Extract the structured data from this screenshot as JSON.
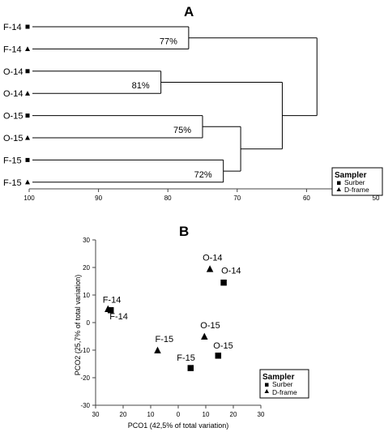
{
  "chart_data": [
    {
      "type": "dendrogram",
      "panel_label": "A",
      "leaves": [
        {
          "label": "F-14",
          "sampler": "Surber"
        },
        {
          "label": "F-14",
          "sampler": "D-frame"
        },
        {
          "label": "O-14",
          "sampler": "Surber"
        },
        {
          "label": "O-14",
          "sampler": "D-frame"
        },
        {
          "label": "O-15",
          "sampler": "Surber"
        },
        {
          "label": "O-15",
          "sampler": "D-frame"
        },
        {
          "label": "F-15",
          "sampler": "Surber"
        },
        {
          "label": "F-15",
          "sampler": "D-frame"
        }
      ],
      "clusters": [
        {
          "members": [
            0,
            1
          ],
          "similarity": 77,
          "label": "77%"
        },
        {
          "members": [
            2,
            3
          ],
          "similarity": 81,
          "label": "81%"
        },
        {
          "members": [
            4,
            5
          ],
          "similarity": 75,
          "label": "75%"
        },
        {
          "members": [
            6,
            7
          ],
          "similarity": 72,
          "label": "72%"
        },
        {
          "members": [
            4,
            5,
            6,
            7
          ],
          "similarity": 69.5,
          "label": ""
        },
        {
          "members": [
            2,
            3,
            4,
            5,
            6,
            7
          ],
          "similarity": 63.5,
          "label": ""
        },
        {
          "members": [
            0,
            1,
            2,
            3,
            4,
            5,
            6,
            7
          ],
          "similarity": 58.5,
          "label": ""
        }
      ],
      "x_ticks": [
        "100",
        "90",
        "80",
        "70",
        "60",
        "50"
      ],
      "xlim": [
        100,
        50
      ],
      "legend": {
        "title": "Sampler",
        "items": [
          "Surber",
          "D-frame"
        ],
        "position": "right"
      }
    },
    {
      "type": "scatter",
      "panel_label": "B",
      "xlabel": "PCO1 (42,5% of total variation)",
      "ylabel": "PCO2 (25,7% of total variation)",
      "xlim": [
        30,
        -30
      ],
      "ylim": [
        -30,
        30
      ],
      "x_ticks": [
        "30",
        "20",
        "10",
        "0",
        "10",
        "20",
        "30"
      ],
      "y_ticks": [
        "30",
        "20",
        "10",
        "0",
        "-10",
        "-20",
        "-30"
      ],
      "points": [
        {
          "label": "F-14",
          "sampler": "Surber",
          "x": 24.5,
          "y": 4.5
        },
        {
          "label": "F-14",
          "sampler": "D-frame",
          "x": 25.5,
          "y": 5
        },
        {
          "label": "O-14",
          "sampler": "Surber",
          "x": -16.5,
          "y": 14.5
        },
        {
          "label": "O-14",
          "sampler": "D-frame",
          "x": -11.5,
          "y": 19.5
        },
        {
          "label": "O-15",
          "sampler": "Surber",
          "x": -14.5,
          "y": -12
        },
        {
          "label": "O-15",
          "sampler": "D-frame",
          "x": -9.5,
          "y": -5
        },
        {
          "label": "F-15",
          "sampler": "Surber",
          "x": -4.5,
          "y": -16.5
        },
        {
          "label": "F-15",
          "sampler": "D-frame",
          "x": 7.5,
          "y": -10
        }
      ],
      "legend": {
        "title": "Sampler",
        "items": [
          "Surber",
          "D-frame"
        ],
        "position": "bottom-right"
      }
    }
  ]
}
